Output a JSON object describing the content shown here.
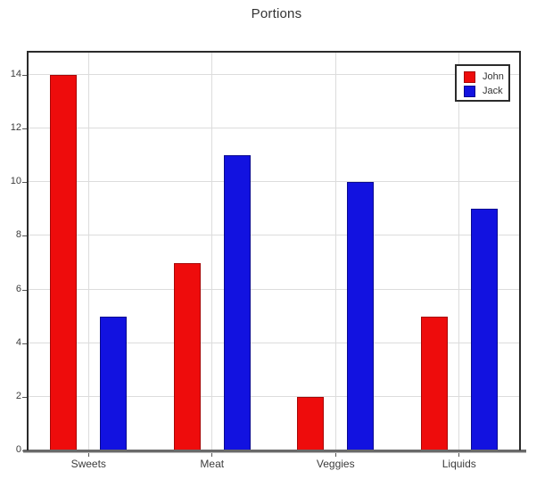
{
  "chart_data": {
    "type": "bar",
    "title": "Portions",
    "categories": [
      "Sweets",
      "Meat",
      "Veggies",
      "Liquids"
    ],
    "series": [
      {
        "name": "John",
        "color": "#ee0c0c",
        "edge_color": "#a80707",
        "values": [
          14,
          7,
          2,
          5
        ]
      },
      {
        "name": "Jack",
        "color": "#1212e0",
        "edge_color": "#09098f",
        "values": [
          5,
          11,
          10,
          9
        ]
      }
    ],
    "ylim": [
      0,
      14.9
    ],
    "yticks": [
      0,
      2,
      4,
      6,
      8,
      10,
      12,
      14
    ],
    "xlabel": "",
    "ylabel": "",
    "grid": true,
    "legend_position": "top-right",
    "colors": {
      "grid": "#dcdcdc",
      "plot_border": "#2b2b2b",
      "axis_line": "#6a6a6a",
      "tick_text": "#3c3c3c",
      "title_text": "#333333",
      "background": "#ffffff"
    }
  }
}
